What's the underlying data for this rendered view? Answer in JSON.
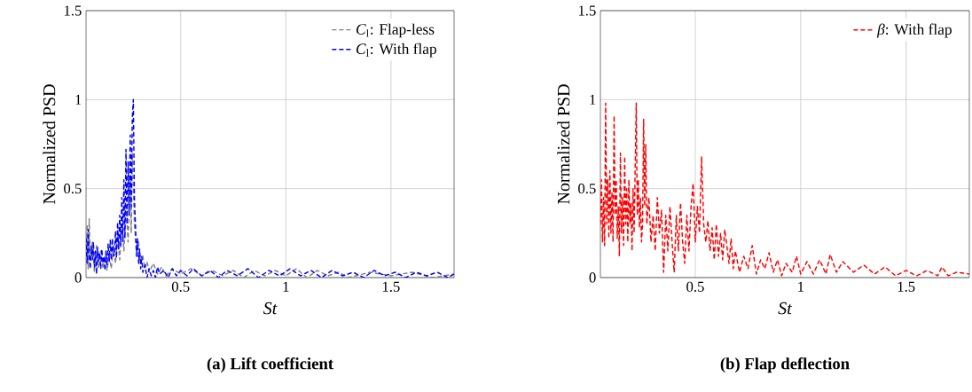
{
  "chart_data": [
    {
      "type": "line",
      "title": "(a) Lift coefficient",
      "xlabel": "St",
      "ylabel": "Normalized PSD",
      "xlim": [
        0.05,
        1.8
      ],
      "ylim": [
        0,
        1.5
      ],
      "xticks": [
        0.5,
        1,
        1.5
      ],
      "yticks": [
        0,
        0.5,
        1,
        1.5
      ],
      "grid": true,
      "legend": "top right",
      "line_style": "dashed",
      "marker": "none",
      "series": [
        {
          "name": "*C*$_{l}$: Flap-less",
          "color": "#808080",
          "x": [
            0.05,
            0.055,
            0.06,
            0.065,
            0.07,
            0.08,
            0.09,
            0.1,
            0.11,
            0.12,
            0.13,
            0.14,
            0.15,
            0.16,
            0.17,
            0.18,
            0.19,
            0.2,
            0.21,
            0.22,
            0.23,
            0.24,
            0.25,
            0.26,
            0.265,
            0.27,
            0.28,
            0.29,
            0.3,
            0.31,
            0.32,
            0.33,
            0.34,
            0.35,
            0.37,
            0.39,
            0.41,
            0.43,
            0.46,
            0.5,
            0.55,
            0.6,
            0.65,
            0.7,
            0.75,
            0.8,
            0.85,
            0.9,
            0.95,
            1.0,
            1.05,
            1.1,
            1.15,
            1.2,
            1.25,
            1.3,
            1.4,
            1.5,
            1.6,
            1.7,
            1.8
          ],
          "values": [
            0.15,
            0.3,
            0.05,
            0.33,
            0.1,
            0.2,
            0.03,
            0.18,
            0.05,
            0.15,
            0.05,
            0.12,
            0.04,
            0.13,
            0.05,
            0.18,
            0.08,
            0.24,
            0.1,
            0.3,
            0.15,
            0.42,
            0.2,
            0.55,
            0.25,
            0.7,
            0.3,
            0.15,
            0.2,
            0.08,
            0.12,
            0.05,
            0.09,
            0.03,
            0.08,
            0.02,
            0.06,
            0.01,
            0.05,
            0.02,
            0.05,
            0.01,
            0.04,
            0.01,
            0.04,
            0.0,
            0.04,
            0.01,
            0.04,
            0.01,
            0.05,
            0.0,
            0.04,
            0.01,
            0.03,
            0.0,
            0.03,
            0.01,
            0.03,
            0.0,
            0.02
          ]
        },
        {
          "name": "*C*$_{l}$: With flap",
          "color": "#0000ff",
          "x": [
            0.05,
            0.055,
            0.06,
            0.065,
            0.07,
            0.075,
            0.08,
            0.085,
            0.09,
            0.095,
            0.1,
            0.105,
            0.11,
            0.115,
            0.12,
            0.125,
            0.13,
            0.135,
            0.14,
            0.145,
            0.15,
            0.155,
            0.16,
            0.165,
            0.17,
            0.175,
            0.18,
            0.185,
            0.19,
            0.195,
            0.2,
            0.205,
            0.21,
            0.215,
            0.22,
            0.225,
            0.23,
            0.235,
            0.24,
            0.245,
            0.25,
            0.255,
            0.26,
            0.265,
            0.27,
            0.275,
            0.28,
            0.285,
            0.29,
            0.295,
            0.3,
            0.305,
            0.31,
            0.315,
            0.32,
            0.33,
            0.34,
            0.35,
            0.36,
            0.37,
            0.38,
            0.39,
            0.4,
            0.42,
            0.44,
            0.46,
            0.48,
            0.5,
            0.53,
            0.56,
            0.6,
            0.64,
            0.68,
            0.72,
            0.77,
            0.82,
            0.87,
            0.92,
            0.97,
            1.02,
            1.07,
            1.12,
            1.17,
            1.22,
            1.27,
            1.32,
            1.37,
            1.42,
            1.47,
            1.52,
            1.57,
            1.62,
            1.67,
            1.72,
            1.77,
            1.8
          ],
          "values": [
            0.22,
            0.08,
            0.27,
            0.12,
            0.05,
            0.18,
            0.1,
            0.2,
            0.06,
            0.15,
            0.02,
            0.17,
            0.09,
            0.14,
            0.05,
            0.16,
            0.08,
            0.12,
            0.04,
            0.15,
            0.07,
            0.19,
            0.09,
            0.21,
            0.1,
            0.22,
            0.12,
            0.13,
            0.26,
            0.11,
            0.31,
            0.16,
            0.35,
            0.18,
            0.45,
            0.2,
            0.55,
            0.22,
            0.72,
            0.3,
            0.65,
            0.35,
            0.8,
            0.4,
            0.9,
            1.0,
            0.45,
            0.3,
            0.12,
            0.22,
            0.08,
            0.16,
            0.05,
            0.12,
            0.03,
            0.07,
            0.0,
            0.05,
            0.01,
            0.04,
            0.0,
            0.06,
            0.02,
            0.04,
            0.0,
            0.05,
            0.01,
            0.04,
            0.01,
            0.05,
            0.01,
            0.04,
            0.0,
            0.04,
            0.01,
            0.05,
            0.0,
            0.04,
            0.01,
            0.05,
            0.01,
            0.04,
            0.0,
            0.04,
            0.01,
            0.03,
            0.0,
            0.04,
            0.01,
            0.03,
            0.0,
            0.03,
            0.01,
            0.03,
            0.0,
            0.02
          ]
        }
      ]
    },
    {
      "type": "line",
      "title": "(b) Flap deflection",
      "xlabel": "St",
      "ylabel": "Normalized PSD",
      "xlim": [
        0.05,
        1.8
      ],
      "ylim": [
        0,
        1.5
      ],
      "xticks": [
        0.5,
        1,
        1.5
      ],
      "yticks": [
        0,
        0.5,
        1,
        1.5
      ],
      "grid": true,
      "legend": "top right",
      "line_style": "dashed",
      "marker": "none",
      "series": [
        {
          "name": "*β*: With flap",
          "color": "#ff0000",
          "x": [
            0.05,
            0.055,
            0.06,
            0.065,
            0.07,
            0.075,
            0.08,
            0.085,
            0.09,
            0.095,
            0.1,
            0.105,
            0.11,
            0.115,
            0.12,
            0.125,
            0.13,
            0.135,
            0.14,
            0.145,
            0.15,
            0.155,
            0.16,
            0.165,
            0.17,
            0.175,
            0.18,
            0.185,
            0.19,
            0.195,
            0.2,
            0.205,
            0.21,
            0.22,
            0.225,
            0.23,
            0.235,
            0.24,
            0.245,
            0.25,
            0.255,
            0.26,
            0.265,
            0.27,
            0.28,
            0.29,
            0.3,
            0.31,
            0.32,
            0.33,
            0.34,
            0.35,
            0.36,
            0.37,
            0.38,
            0.39,
            0.4,
            0.41,
            0.42,
            0.43,
            0.44,
            0.45,
            0.46,
            0.47,
            0.48,
            0.49,
            0.5,
            0.51,
            0.52,
            0.53,
            0.54,
            0.55,
            0.56,
            0.57,
            0.58,
            0.59,
            0.6,
            0.61,
            0.62,
            0.63,
            0.64,
            0.66,
            0.67,
            0.68,
            0.69,
            0.71,
            0.73,
            0.75,
            0.77,
            0.79,
            0.81,
            0.83,
            0.85,
            0.87,
            0.89,
            0.91,
            0.93,
            0.96,
            0.98,
            1.0,
            1.03,
            1.06,
            1.09,
            1.12,
            1.14,
            1.17,
            1.2,
            1.25,
            1.3,
            1.35,
            1.4,
            1.45,
            1.5,
            1.55,
            1.6,
            1.65,
            1.67,
            1.7,
            1.74,
            1.8
          ],
          "values": [
            0.3,
            0.55,
            0.2,
            0.45,
            0.18,
            0.98,
            0.3,
            0.55,
            0.22,
            0.6,
            0.25,
            0.48,
            0.2,
            0.91,
            0.35,
            0.55,
            0.22,
            0.4,
            0.12,
            0.7,
            0.25,
            0.45,
            0.18,
            0.68,
            0.3,
            0.5,
            0.2,
            0.55,
            0.3,
            0.42,
            0.15,
            0.5,
            0.25,
            0.98,
            0.35,
            0.55,
            0.28,
            0.45,
            0.2,
            0.3,
            0.89,
            0.4,
            0.75,
            0.3,
            0.45,
            0.2,
            0.35,
            0.15,
            0.45,
            0.25,
            0.38,
            0.03,
            0.35,
            0.15,
            0.4,
            0.2,
            0.03,
            0.35,
            0.15,
            0.42,
            0.2,
            0.08,
            0.35,
            0.15,
            0.4,
            0.53,
            0.2,
            0.4,
            0.25,
            0.68,
            0.3,
            0.2,
            0.32,
            0.15,
            0.28,
            0.1,
            0.3,
            0.12,
            0.25,
            0.1,
            0.27,
            0.08,
            0.22,
            0.05,
            0.15,
            0.03,
            0.12,
            0.05,
            0.18,
            0.02,
            0.1,
            0.05,
            0.14,
            0.03,
            0.1,
            0.01,
            0.08,
            0.03,
            0.12,
            0.02,
            0.09,
            0.02,
            0.1,
            0.02,
            0.13,
            0.03,
            0.09,
            0.03,
            0.07,
            0.02,
            0.06,
            0.01,
            0.04,
            0.01,
            0.04,
            0.01,
            0.06,
            0.01,
            0.03,
            0.02
          ]
        }
      ]
    }
  ]
}
